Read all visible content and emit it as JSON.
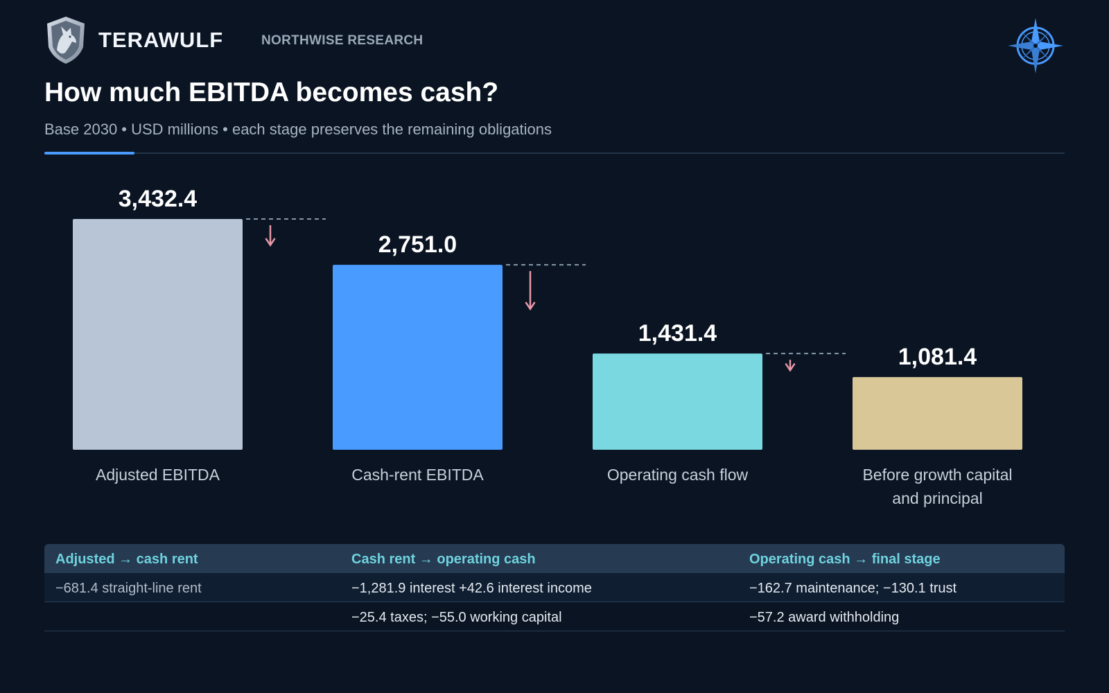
{
  "header": {
    "brand": "TERAWULF",
    "research": "NORTHWISE RESEARCH",
    "logo_icon": "wolf-shield-icon",
    "compass_icon": "compass-rose-icon"
  },
  "title": "How much EBITDA becomes cash?",
  "subtitle": "Base 2030 • USD millions • each stage preserves the remaining obligations",
  "colors": {
    "background": "#0a1422",
    "accent": "#4a9bff",
    "down_arrow": "#e898a8",
    "table_header_text": "#6fd3df"
  },
  "chart_data": {
    "type": "bar",
    "categories": [
      "Adjusted EBITDA",
      "Cash-rent EBITDA",
      "Operating cash flow",
      "Before growth capital and principal"
    ],
    "values": [
      3432.4,
      2751.0,
      1431.4,
      1081.4
    ],
    "value_labels": [
      "3,432.4",
      "2,751.0",
      "1,431.4",
      "1,081.4"
    ],
    "bar_colors": [
      "#b7c5d6",
      "#4a9bff",
      "#79d8e0",
      "#d9c797"
    ],
    "ylim": [
      0,
      3432.4
    ],
    "grid": false,
    "legend": "none",
    "connectors": "dashed lines with down arrows between bars showing decrease"
  },
  "table": {
    "headers": [
      "Adjusted → cash rent",
      "Cash rent → operating cash",
      "Operating cash → final stage"
    ],
    "rows": [
      [
        "−681.4 straight-line rent",
        "−1,281.9 interest +42.6 interest income",
        "−162.7 maintenance; −130.1 trust"
      ],
      [
        "",
        "−25.4 taxes; −55.0 working capital",
        "−57.2 award withholding"
      ]
    ]
  }
}
